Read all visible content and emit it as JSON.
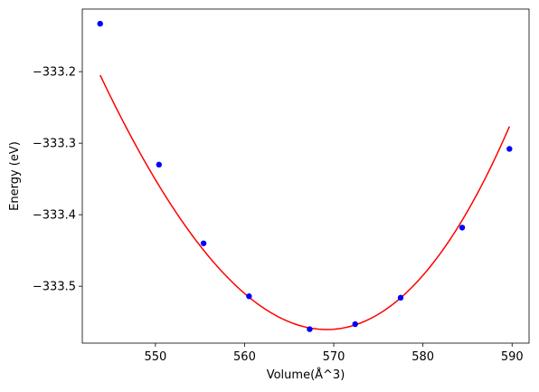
{
  "chart_data": {
    "type": "scatter",
    "title": "",
    "xlabel": "Volume(Å^3)",
    "ylabel": "Energy (eV)",
    "xlim": [
      541.8,
      591.9
    ],
    "ylim": [
      -333.5795,
      -333.1125
    ],
    "xticks": [
      550,
      560,
      570,
      580,
      590
    ],
    "yticks": [
      -333.2,
      -333.3,
      -333.4,
      -333.5
    ],
    "xtick_labels": [
      "550",
      "560",
      "570",
      "580",
      "590"
    ],
    "ytick_labels": [
      "−333.2",
      "−333.3",
      "−333.4",
      "−333.5"
    ],
    "grid": false,
    "legend": "none",
    "series": [
      {
        "kind": "points",
        "color": "#0000ff",
        "points": [
          {
            "x": 543.8,
            "y": -333.133
          },
          {
            "x": 550.4,
            "y": -333.33
          },
          {
            "x": 555.4,
            "y": -333.44
          },
          {
            "x": 560.5,
            "y": -333.514
          },
          {
            "x": 567.3,
            "y": -333.56
          },
          {
            "x": 572.4,
            "y": -333.553
          },
          {
            "x": 577.5,
            "y": -333.516
          },
          {
            "x": 584.4,
            "y": -333.418
          },
          {
            "x": 589.7,
            "y": -333.308
          }
        ]
      },
      {
        "kind": "fit-curve",
        "color": "#ff0000",
        "vertex": {
          "x": 569.2,
          "y": -333.5605
        },
        "a": 0.00062,
        "b": 2.7e-06,
        "x_range": [
          543.8,
          589.7
        ]
      }
    ]
  }
}
